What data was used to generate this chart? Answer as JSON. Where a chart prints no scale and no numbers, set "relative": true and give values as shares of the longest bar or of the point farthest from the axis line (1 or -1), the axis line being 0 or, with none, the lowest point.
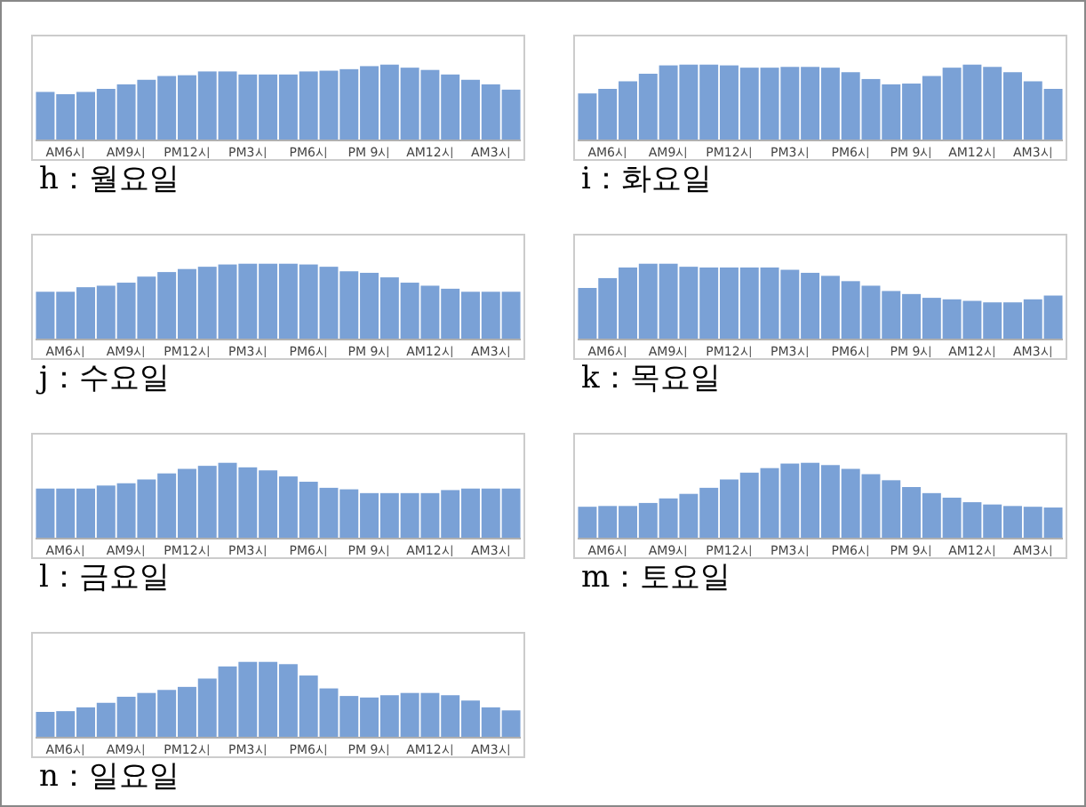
{
  "chart_data": [
    {
      "type": "bar",
      "title": "h：월요일",
      "relative": true,
      "color": "#7aa1d6",
      "categories": [
        null,
        "AM6시",
        null,
        null,
        "AM9시",
        null,
        null,
        "PM12시",
        null,
        null,
        "PM3시",
        null,
        null,
        "PM6시",
        null,
        null,
        "PM 9시",
        null,
        null,
        "AM12시",
        null,
        null,
        "AM3시",
        null
      ],
      "values": [
        0.64,
        0.61,
        0.64,
        0.68,
        0.74,
        0.8,
        0.85,
        0.86,
        0.91,
        0.91,
        0.87,
        0.87,
        0.87,
        0.91,
        0.92,
        0.94,
        0.98,
        1,
        0.96,
        0.93,
        0.87,
        0.8,
        0.74,
        0.67
      ]
    },
    {
      "type": "bar",
      "title": "i：화요일",
      "relative": true,
      "color": "#7aa1d6",
      "categories": [
        null,
        "AM6시",
        null,
        null,
        "AM9시",
        null,
        null,
        "PM12시",
        null,
        null,
        "PM3시",
        null,
        null,
        "PM6시",
        null,
        null,
        "PM 9시",
        null,
        null,
        "AM12시",
        null,
        null,
        "AM3시",
        null
      ],
      "values": [
        0.62,
        0.68,
        0.78,
        0.88,
        0.99,
        1,
        1,
        0.99,
        0.96,
        0.96,
        0.97,
        0.97,
        0.96,
        0.9,
        0.81,
        0.74,
        0.75,
        0.85,
        0.96,
        1,
        0.97,
        0.9,
        0.78,
        0.68
      ]
    },
    {
      "type": "bar",
      "title": "j：수요일",
      "relative": true,
      "color": "#7aa1d6",
      "categories": [
        null,
        "AM6시",
        null,
        null,
        "AM9시",
        null,
        null,
        "PM12시",
        null,
        null,
        "PM3시",
        null,
        null,
        "PM6시",
        null,
        null,
        "PM 9시",
        null,
        null,
        "AM12시",
        null,
        null,
        "AM3시",
        null
      ],
      "values": [
        0.63,
        0.63,
        0.69,
        0.71,
        0.75,
        0.83,
        0.89,
        0.93,
        0.96,
        0.99,
        1,
        1,
        1,
        0.99,
        0.96,
        0.9,
        0.88,
        0.82,
        0.75,
        0.71,
        0.67,
        0.63,
        0.63,
        0.63
      ]
    },
    {
      "type": "bar",
      "title": "k：목요일",
      "relative": true,
      "color": "#7aa1d6",
      "categories": [
        null,
        "AM6시",
        null,
        null,
        "AM9시",
        null,
        null,
        "PM12시",
        null,
        null,
        "PM3시",
        null,
        null,
        "PM6시",
        null,
        null,
        "PM 9시",
        null,
        null,
        "AM12시",
        null,
        null,
        "AM3시",
        null
      ],
      "values": [
        0.68,
        0.81,
        0.95,
        1,
        1,
        0.96,
        0.95,
        0.95,
        0.95,
        0.95,
        0.92,
        0.88,
        0.84,
        0.77,
        0.71,
        0.64,
        0.6,
        0.55,
        0.53,
        0.51,
        0.49,
        0.49,
        0.53,
        0.58
      ]
    },
    {
      "type": "bar",
      "title": "l：금요일",
      "relative": true,
      "color": "#7aa1d6",
      "categories": [
        null,
        "AM6시",
        null,
        null,
        "AM9시",
        null,
        null,
        "PM12시",
        null,
        null,
        "PM3시",
        null,
        null,
        "PM6시",
        null,
        null,
        "PM 9시",
        null,
        null,
        "AM12시",
        null,
        null,
        "AM3시",
        null
      ],
      "values": [
        0.66,
        0.66,
        0.66,
        0.7,
        0.73,
        0.78,
        0.86,
        0.92,
        0.96,
        1,
        0.94,
        0.9,
        0.82,
        0.75,
        0.67,
        0.65,
        0.6,
        0.6,
        0.6,
        0.6,
        0.64,
        0.66,
        0.66,
        0.66
      ]
    },
    {
      "type": "bar",
      "title": "m：토요일",
      "relative": true,
      "color": "#7aa1d6",
      "categories": [
        null,
        "AM6시",
        null,
        null,
        "AM9시",
        null,
        null,
        "PM12시",
        null,
        null,
        "PM3시",
        null,
        null,
        "PM6시",
        null,
        null,
        "PM 9시",
        null,
        null,
        "AM12시",
        null,
        null,
        "AM3시",
        null
      ],
      "values": [
        0.42,
        0.43,
        0.43,
        0.47,
        0.53,
        0.59,
        0.67,
        0.78,
        0.87,
        0.93,
        0.99,
        1,
        0.97,
        0.92,
        0.85,
        0.77,
        0.68,
        0.6,
        0.54,
        0.48,
        0.45,
        0.43,
        0.42,
        0.41
      ]
    },
    {
      "type": "bar",
      "title": "n：일요일",
      "relative": true,
      "color": "#7aa1d6",
      "categories": [
        null,
        "AM6시",
        null,
        null,
        "AM9시",
        null,
        null,
        "PM12시",
        null,
        null,
        "PM3시",
        null,
        null,
        "PM6시",
        null,
        null,
        "PM 9시",
        null,
        null,
        "AM12시",
        null,
        null,
        "AM3시",
        null
      ],
      "values": [
        0.34,
        0.35,
        0.4,
        0.46,
        0.54,
        0.59,
        0.63,
        0.67,
        0.78,
        0.94,
        1,
        1,
        0.97,
        0.82,
        0.65,
        0.55,
        0.53,
        0.56,
        0.59,
        0.59,
        0.56,
        0.49,
        0.4,
        0.36
      ]
    }
  ]
}
